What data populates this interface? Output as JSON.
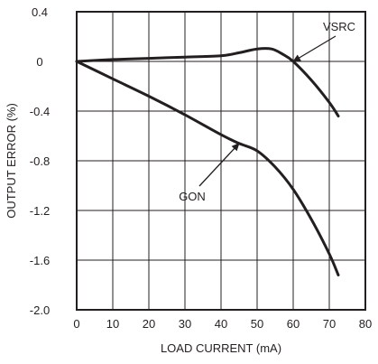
{
  "chart_data": {
    "type": "line",
    "title": "",
    "xlabel": "LOAD CURRENT (mA)",
    "ylabel": "OUTPUT ERROR (%)",
    "xlim": [
      0,
      80
    ],
    "ylim": [
      -2.0,
      0.4
    ],
    "x_ticks": [
      0,
      10,
      20,
      30,
      40,
      50,
      60,
      70,
      80
    ],
    "x_tick_labels": [
      "0",
      "10",
      "20",
      "30",
      "40",
      "50",
      "60",
      "70",
      "80"
    ],
    "y_ticks": [
      0.4,
      0,
      -0.4,
      -0.8,
      -1.2,
      -1.6,
      -2.0
    ],
    "y_tick_labels": [
      "0.4",
      "0",
      "-0.4",
      "-0.8",
      "-1.2",
      "-1.6",
      "-2.0"
    ],
    "grid": true,
    "line_color": "#231f20",
    "series": [
      {
        "name": "VSRC",
        "x": [
          0,
          10,
          20,
          30,
          40,
          45,
          50,
          54,
          57,
          60,
          65,
          70,
          72.5
        ],
        "y": [
          0.0,
          0.015,
          0.025,
          0.035,
          0.045,
          0.07,
          0.1,
          0.1,
          0.06,
          0.0,
          -0.15,
          -0.33,
          -0.44
        ]
      },
      {
        "name": "GON",
        "x": [
          0,
          10,
          20,
          30,
          40,
          45,
          50,
          55,
          60,
          65,
          70,
          72.5
        ],
        "y": [
          0.0,
          -0.14,
          -0.28,
          -0.43,
          -0.59,
          -0.66,
          -0.72,
          -0.85,
          -1.03,
          -1.27,
          -1.55,
          -1.72
        ]
      }
    ],
    "annotations": [
      {
        "text": "VSRC",
        "series": "VSRC",
        "points_to": [
          60,
          0.0
        ]
      },
      {
        "text": "GON",
        "series": "GON",
        "points_to": [
          45,
          -0.66
        ]
      }
    ]
  }
}
